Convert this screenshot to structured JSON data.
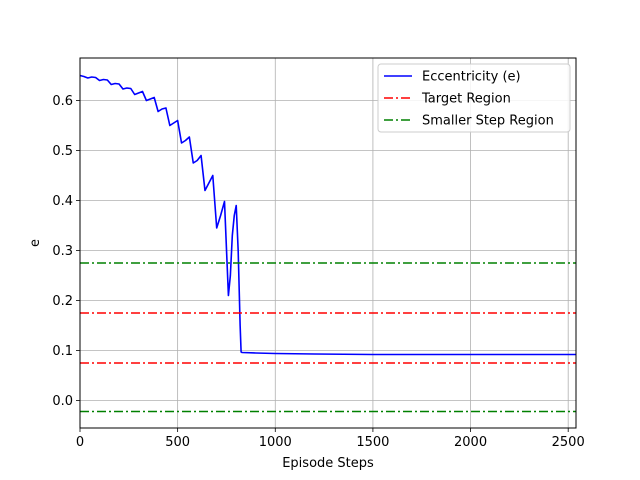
{
  "chart_data": {
    "type": "line",
    "title": "",
    "xlabel": "Episode Steps",
    "ylabel": "e",
    "xlim": [
      0,
      2540
    ],
    "ylim": [
      -0.055,
      0.685
    ],
    "xticks": [
      0,
      500,
      1000,
      1500,
      2000,
      2500
    ],
    "xtick_labels": [
      "0",
      "500",
      "1000",
      "1500",
      "2000",
      "2500"
    ],
    "yticks": [
      0.0,
      0.1,
      0.2,
      0.3,
      0.4,
      0.5,
      0.6
    ],
    "ytick_labels": [
      "0.0",
      "0.1",
      "0.2",
      "0.3",
      "0.4",
      "0.5",
      "0.6"
    ],
    "grid": true,
    "legend_position": "top-right",
    "series": [
      {
        "name": "Eccentricity (e)",
        "color": "#0000ff",
        "style": "solid",
        "x": [
          0,
          20,
          40,
          60,
          80,
          100,
          120,
          140,
          160,
          180,
          200,
          220,
          240,
          260,
          280,
          300,
          320,
          340,
          360,
          380,
          400,
          420,
          440,
          460,
          480,
          500,
          520,
          540,
          560,
          580,
          600,
          620,
          640,
          660,
          680,
          700,
          720,
          740,
          760,
          770,
          780,
          790,
          800,
          810,
          820,
          825,
          830,
          900,
          1000,
          1200,
          1500,
          1800,
          2000,
          2200,
          2540
        ],
        "y": [
          0.65,
          0.648,
          0.645,
          0.647,
          0.646,
          0.64,
          0.642,
          0.641,
          0.632,
          0.634,
          0.633,
          0.623,
          0.625,
          0.624,
          0.612,
          0.615,
          0.618,
          0.6,
          0.603,
          0.606,
          0.578,
          0.583,
          0.585,
          0.55,
          0.555,
          0.56,
          0.515,
          0.52,
          0.527,
          0.475,
          0.48,
          0.49,
          0.42,
          0.435,
          0.45,
          0.345,
          0.37,
          0.398,
          0.21,
          0.25,
          0.33,
          0.37,
          0.39,
          0.3,
          0.15,
          0.097,
          0.096,
          0.095,
          0.094,
          0.093,
          0.092,
          0.092,
          0.092,
          0.092,
          0.092
        ]
      },
      {
        "name": "Target Region",
        "color": "#ff0000",
        "style": "dashdot",
        "levels": [
          0.175,
          0.075
        ]
      },
      {
        "name": "Smaller Step Region",
        "color": "#008000",
        "style": "dashdot",
        "levels": [
          0.275,
          -0.022
        ]
      }
    ]
  }
}
